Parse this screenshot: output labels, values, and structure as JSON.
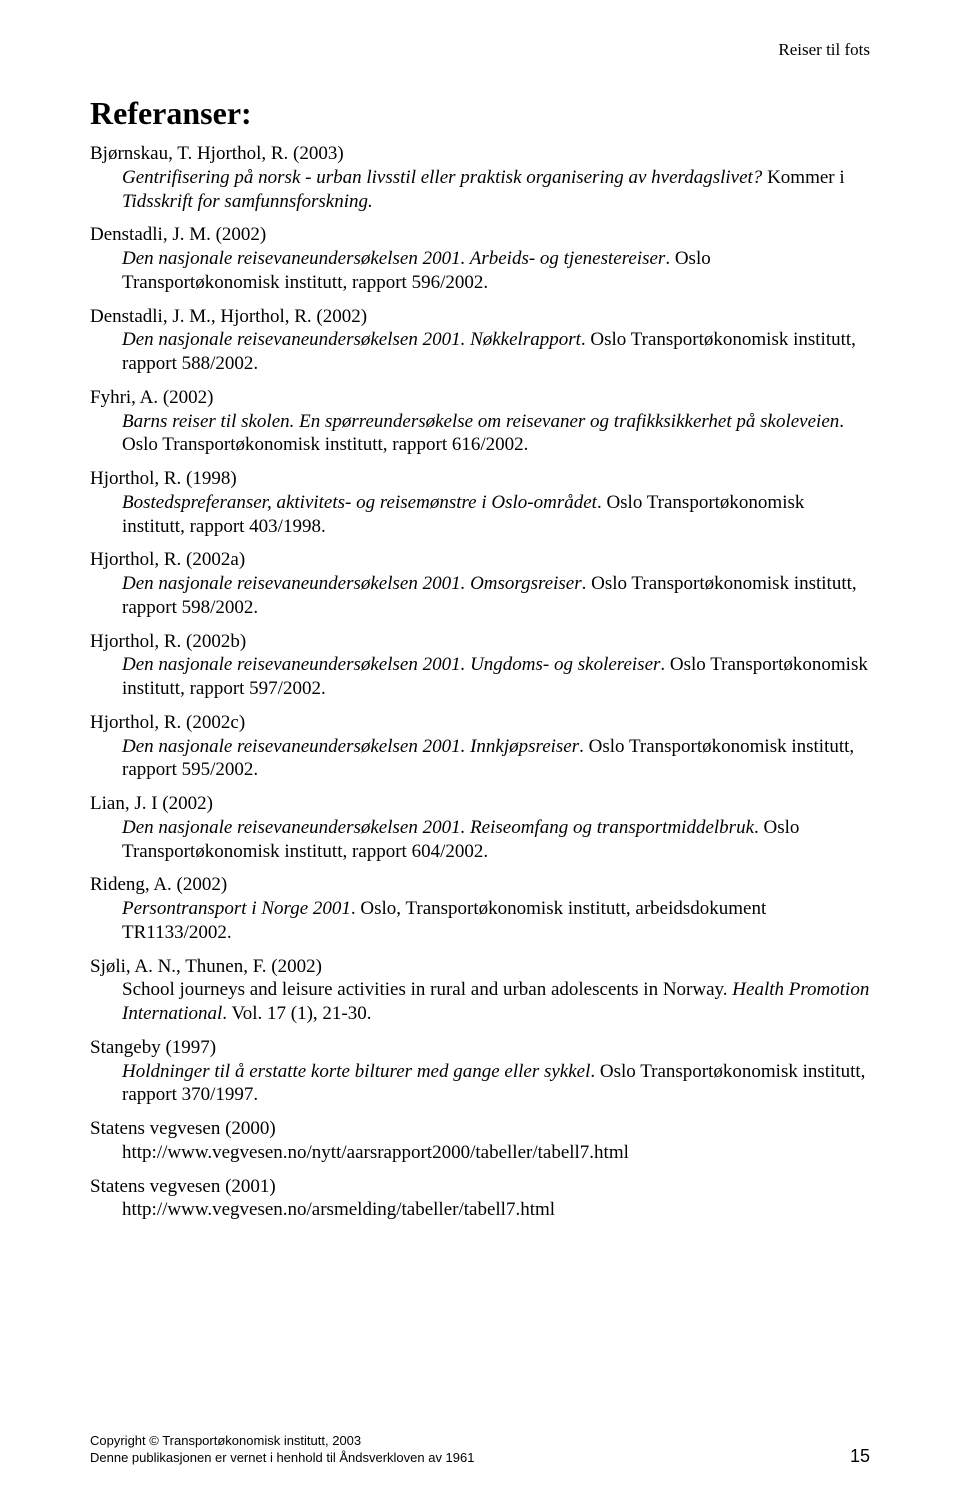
{
  "running_header": "Reiser til fots",
  "title": "Referanser:",
  "references": [
    {
      "author": "Bjørnskau, T. Hjorthol, R. (2003)",
      "segments": [
        {
          "text": "Gentrifisering på norsk - urban livsstil eller praktisk organisering av hverdagslivet? ",
          "italic": true
        },
        {
          "text": "Kommer i ",
          "italic": false
        },
        {
          "text": "Tidsskrift for samfunnsforskning.",
          "italic": true
        }
      ]
    },
    {
      "author": "Denstadli, J. M. (2002)",
      "segments": [
        {
          "text": "Den nasjonale reisevaneundersøkelsen 2001. Arbeids- og tjenestereiser",
          "italic": true
        },
        {
          "text": ". Oslo Transportøkonomisk institutt, rapport 596/2002.",
          "italic": false
        }
      ]
    },
    {
      "author": "Denstadli, J. M., Hjorthol, R. (2002)",
      "segments": [
        {
          "text": "Den nasjonale reisevaneundersøkelsen 2001. Nøkkelrapport",
          "italic": true
        },
        {
          "text": ". Oslo Transportøkonomisk institutt, rapport 588/2002.",
          "italic": false
        }
      ]
    },
    {
      "author": "Fyhri, A. (2002)",
      "segments": [
        {
          "text": "Barns reiser til skolen. En spørreundersøkelse om reisevaner og trafikksikkerhet på skoleveien",
          "italic": true
        },
        {
          "text": ". Oslo Transportøkonomisk institutt, rapport 616/2002.",
          "italic": false
        }
      ]
    },
    {
      "author": "Hjorthol, R. (1998)",
      "segments": [
        {
          "text": "Bostedspreferanser, aktivitets- og reisemønstre i Oslo-området",
          "italic": true
        },
        {
          "text": ". Oslo Transportøkonomisk institutt, rapport 403/1998.",
          "italic": false
        }
      ]
    },
    {
      "author": "Hjorthol, R. (2002a)",
      "segments": [
        {
          "text": "Den nasjonale reisevaneundersøkelsen 2001. Omsorgsreiser",
          "italic": true
        },
        {
          "text": ". Oslo Transportøkonomisk institutt, rapport 598/2002.",
          "italic": false
        }
      ]
    },
    {
      "author": "Hjorthol, R. (2002b)",
      "segments": [
        {
          "text": "Den nasjonale reisevaneundersøkelsen 2001. Ungdoms- og skolereiser",
          "italic": true
        },
        {
          "text": ". Oslo Transportøkonomisk institutt, rapport 597/2002.",
          "italic": false
        }
      ]
    },
    {
      "author": "Hjorthol, R. (2002c)",
      "segments": [
        {
          "text": "Den nasjonale reisevaneundersøkelsen 2001. Innkjøpsreiser",
          "italic": true
        },
        {
          "text": ". Oslo Transportøkonomisk institutt, rapport 595/2002.",
          "italic": false
        }
      ]
    },
    {
      "author": "Lian, J. I (2002)",
      "segments": [
        {
          "text": "Den nasjonale reisevaneundersøkelsen 2001. Reiseomfang og transportmiddelbruk",
          "italic": true
        },
        {
          "text": ". Oslo Transportøkonomisk institutt, rapport 604/2002.",
          "italic": false
        }
      ]
    },
    {
      "author": "Rideng, A. (2002)",
      "segments": [
        {
          "text": "Persontransport i Norge 2001",
          "italic": true
        },
        {
          "text": ". Oslo, Transportøkonomisk institutt, arbeidsdokument TR1133/2002.",
          "italic": false
        }
      ]
    },
    {
      "author": "Sjøli, A. N., Thunen, F. (2002)",
      "segments": [
        {
          "text": "School journeys and leisure activities in rural and urban adolescents in Norway. ",
          "italic": false
        },
        {
          "text": "Health Promotion International",
          "italic": true
        },
        {
          "text": ". Vol. 17 (1), 21-30.",
          "italic": false
        }
      ]
    },
    {
      "author": "Stangeby (1997)",
      "segments": [
        {
          "text": "Holdninger til å erstatte korte bilturer med gange eller sykkel",
          "italic": true
        },
        {
          "text": ". Oslo Transportøkonomisk institutt, rapport 370/1997.",
          "italic": false
        }
      ]
    },
    {
      "author": "Statens vegvesen (2000)",
      "segments": [
        {
          "text": "http://www.vegvesen.no/nytt/aarsrapport2000/tabeller/tabell7.html",
          "italic": false
        }
      ]
    },
    {
      "author": "Statens vegvesen (2001)",
      "segments": [
        {
          "text": "http://www.vegvesen.no/arsmelding/tabeller/tabell7.html",
          "italic": false
        }
      ]
    }
  ],
  "footer": {
    "copyright": "Copyright © Transportøkonomisk institutt, 2003",
    "note": "Denne publikasjonen er vernet i henhold til Åndsverkloven av 1961",
    "page_number": "15"
  }
}
